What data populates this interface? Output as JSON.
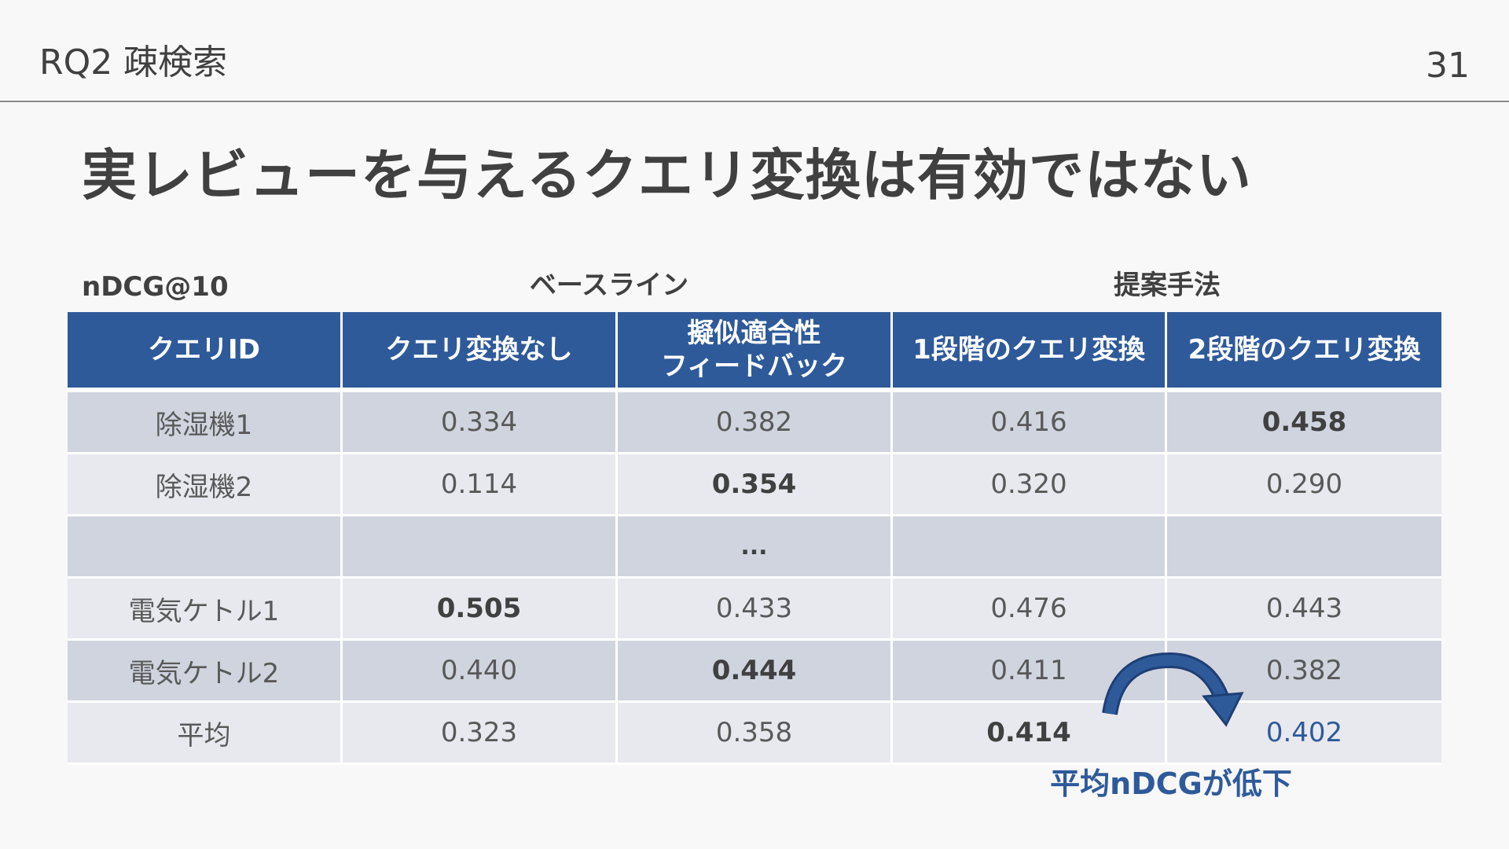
{
  "header": {
    "section_label": "RQ2 疎検索",
    "page_number": "31"
  },
  "title": "実レビューを与えるクエリ変換は有効ではない",
  "table": {
    "metric_label": "nDCG@10",
    "group_baseline": "ベースライン",
    "group_proposed": "提案手法",
    "columns": [
      "クエリID",
      "クエリ変換なし",
      "擬似適合性\nフィードバック",
      "1段階のクエリ変換",
      "2段階のクエリ変換"
    ],
    "rows": [
      {
        "id": "除湿機1",
        "values": [
          "0.334",
          "0.382",
          "0.416",
          "0.458"
        ],
        "bold_index": 3
      },
      {
        "id": "除湿機2",
        "values": [
          "0.114",
          "0.354",
          "0.320",
          "0.290"
        ],
        "bold_index": 1
      },
      {
        "id": "",
        "values": [
          "",
          "...",
          "",
          ""
        ],
        "ellipsis": true
      },
      {
        "id": "電気ケトル1",
        "values": [
          "0.505",
          "0.433",
          "0.476",
          "0.443"
        ],
        "bold_index": 0
      },
      {
        "id": "電気ケトル2",
        "values": [
          "0.440",
          "0.444",
          "0.411",
          "0.382"
        ],
        "bold_index": 1
      },
      {
        "id": "平均",
        "values": [
          "0.323",
          "0.358",
          "0.414",
          "0.402"
        ],
        "bold_index": 2,
        "highlight_index": 3
      }
    ]
  },
  "annotation": {
    "note": "平均nDCGが低下"
  },
  "colors": {
    "header_fill": "#2e5a9a",
    "row_dark": "#d0d4df",
    "row_light": "#e8e9ee",
    "accent": "#2e5a9a",
    "text": "#404040"
  },
  "icons": {
    "arrow": "curved-arrow-icon"
  }
}
